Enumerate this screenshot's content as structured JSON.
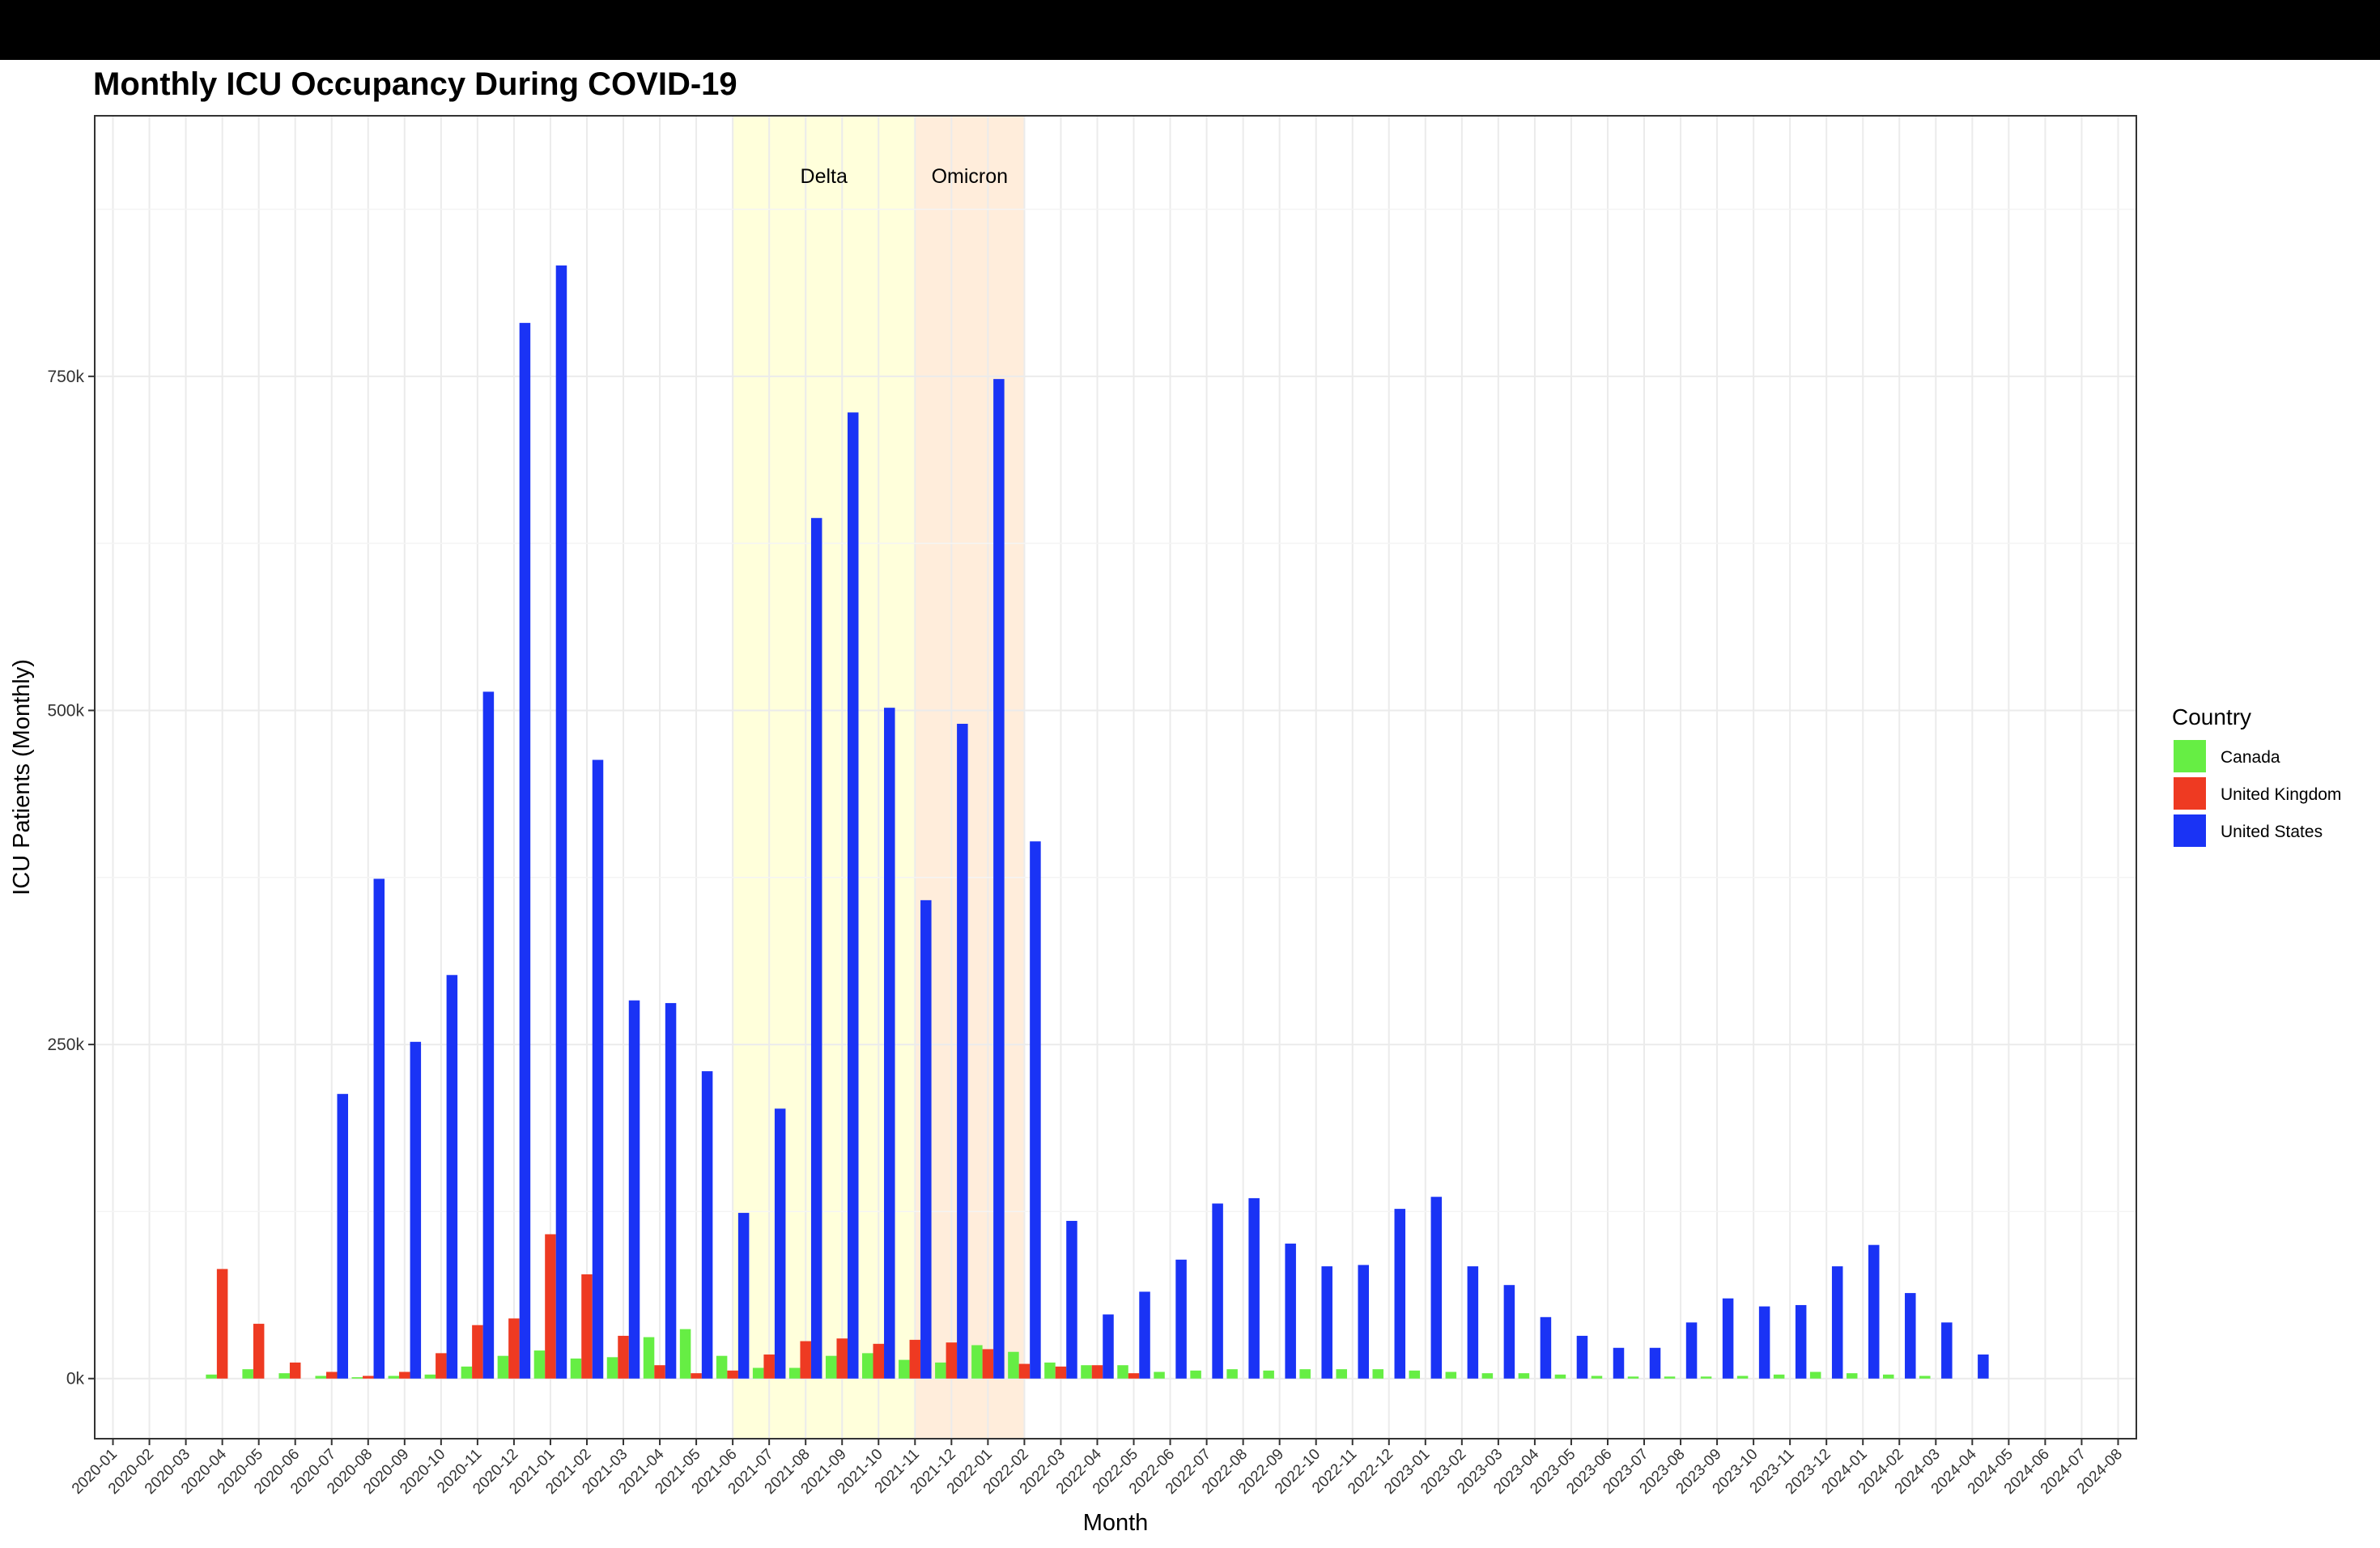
{
  "chart_data": {
    "type": "bar",
    "title": "Monthly ICU Occupancy During COVID-19",
    "xlabel": "Month",
    "ylabel": "ICU Patients (Monthly)",
    "ylim": [
      -45000,
      945000
    ],
    "yticks": [
      0,
      250000,
      500000,
      750000
    ],
    "ytick_labels": [
      "0k",
      "250k",
      "500k",
      "750k"
    ],
    "grid": true,
    "legend": {
      "title": "Country",
      "position": "right"
    },
    "categories": [
      "2020-01",
      "2020-02",
      "2020-03",
      "2020-04",
      "2020-05",
      "2020-06",
      "2020-07",
      "2020-08",
      "2020-09",
      "2020-10",
      "2020-11",
      "2020-12",
      "2021-01",
      "2021-02",
      "2021-03",
      "2021-04",
      "2021-05",
      "2021-06",
      "2021-07",
      "2021-08",
      "2021-09",
      "2021-10",
      "2021-11",
      "2021-12",
      "2022-01",
      "2022-02",
      "2022-03",
      "2022-04",
      "2022-05",
      "2022-06",
      "2022-07",
      "2022-08",
      "2022-09",
      "2022-10",
      "2022-11",
      "2022-12",
      "2023-01",
      "2023-02",
      "2023-03",
      "2023-04",
      "2023-05",
      "2023-06",
      "2023-07",
      "2023-08",
      "2023-09",
      "2023-10",
      "2023-11",
      "2023-12",
      "2024-01",
      "2024-02",
      "2024-03",
      "2024-04",
      "2024-05",
      "2024-06",
      "2024-07",
      "2024-08"
    ],
    "series": [
      {
        "name": "Canada",
        "color": "#66ee44",
        "values": [
          null,
          null,
          null,
          3000,
          7000,
          4000,
          2000,
          1000,
          2000,
          3000,
          9000,
          17000,
          21000,
          15000,
          16000,
          31000,
          37000,
          17000,
          8000,
          8000,
          17000,
          19000,
          14000,
          12000,
          25000,
          20000,
          12000,
          10000,
          10000,
          5000,
          6000,
          7000,
          6000,
          7000,
          7000,
          7000,
          6000,
          5000,
          4000,
          4000,
          3000,
          2000,
          1500,
          1500,
          1500,
          2000,
          3000,
          5000,
          4000,
          3000,
          2000,
          null,
          null,
          null,
          null,
          null
        ]
      },
      {
        "name": "United Kingdom",
        "color": "#ee3a22",
        "values": [
          null,
          null,
          null,
          82000,
          41000,
          12000,
          5000,
          2000,
          5000,
          19000,
          40000,
          45000,
          108000,
          78000,
          32000,
          10000,
          4000,
          6000,
          18000,
          28000,
          30000,
          26000,
          29000,
          27000,
          22000,
          11000,
          9000,
          10000,
          4000,
          null,
          null,
          null,
          null,
          null,
          null,
          null,
          null,
          null,
          null,
          null,
          null,
          null,
          null,
          null,
          null,
          null,
          null,
          null,
          null,
          null,
          null,
          null,
          null,
          null,
          null,
          null
        ]
      },
      {
        "name": "United States",
        "color": "#1a33f5",
        "values": [
          null,
          null,
          null,
          null,
          null,
          null,
          213000,
          374000,
          252000,
          302000,
          514000,
          790000,
          833000,
          463000,
          283000,
          281000,
          230000,
          124000,
          202000,
          644000,
          723000,
          502000,
          358000,
          490000,
          748000,
          402000,
          118000,
          48000,
          65000,
          89000,
          131000,
          135000,
          101000,
          84000,
          85000,
          127000,
          136000,
          84000,
          70000,
          46000,
          32000,
          23000,
          23000,
          42000,
          60000,
          54000,
          55000,
          84000,
          100000,
          64000,
          42000,
          18000,
          null,
          null,
          null,
          null
        ]
      }
    ],
    "annotations": [
      {
        "label": "Delta",
        "start": "2021-06",
        "end": "2021-11",
        "color": "#ffff99"
      },
      {
        "label": "Omicron",
        "start": "2021-11",
        "end": "2022-02",
        "color": "#ffcc99"
      }
    ]
  }
}
